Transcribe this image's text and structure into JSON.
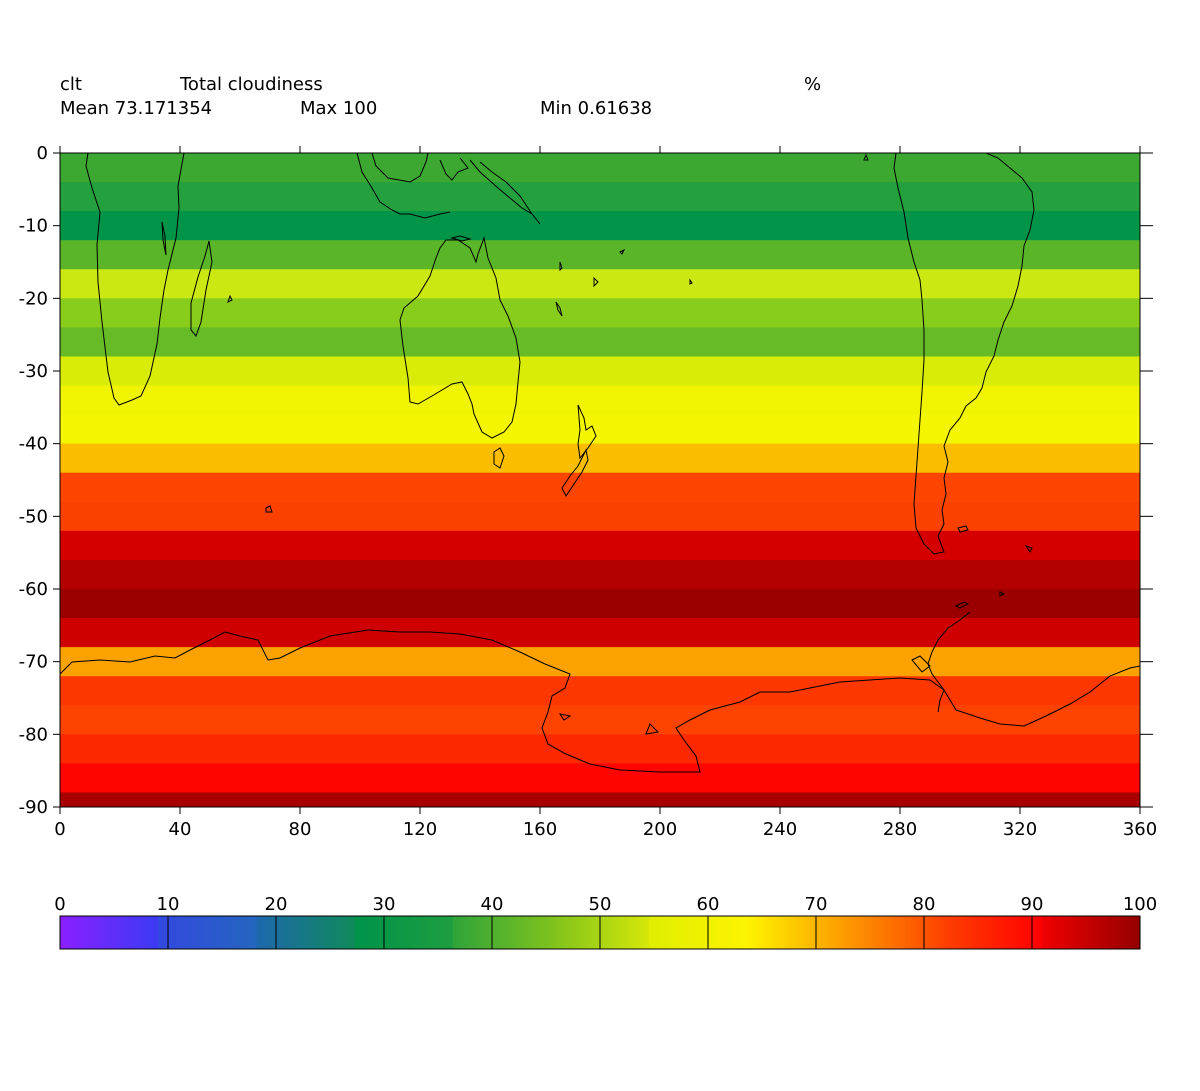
{
  "header": {
    "variable": "clt",
    "long_name": "Total cloudiness",
    "units": "%",
    "mean_label": "Mean 73.171354",
    "max_label": "Max 100",
    "min_label": "Min 0.61638"
  },
  "chart_data": {
    "type": "heatmap",
    "title": "Total cloudiness",
    "xlim": [
      0,
      360
    ],
    "ylim": [
      -90,
      0
    ],
    "x_ticks": [
      "0",
      "40",
      "80",
      "120",
      "160",
      "200",
      "240",
      "280",
      "320",
      "360"
    ],
    "y_ticks": [
      "0",
      "-10",
      "-20",
      "-30",
      "-40",
      "-50",
      "-60",
      "-70",
      "-80",
      "-90"
    ],
    "bands": [
      {
        "lat_top": 0,
        "lat_bottom": -4,
        "value": 44,
        "color": "#3ca832"
      },
      {
        "lat_top": -4,
        "lat_bottom": -8,
        "value": 39,
        "color": "#24a13e"
      },
      {
        "lat_top": -8,
        "lat_bottom": -12,
        "value": 34,
        "color": "#009448"
      },
      {
        "lat_top": -12,
        "lat_bottom": -16,
        "value": 44,
        "color": "#5ab628"
      },
      {
        "lat_top": -16,
        "lat_bottom": -20,
        "value": 58,
        "color": "#cce812"
      },
      {
        "lat_top": -20,
        "lat_bottom": -24,
        "value": 53,
        "color": "#88cc1c"
      },
      {
        "lat_top": -24,
        "lat_bottom": -28,
        "value": 48,
        "color": "#66bb26"
      },
      {
        "lat_top": -28,
        "lat_bottom": -32,
        "value": 58,
        "color": "#d8ec08"
      },
      {
        "lat_top": -32,
        "lat_bottom": -36,
        "value": 62,
        "color": "#f0f400"
      },
      {
        "lat_top": -36,
        "lat_bottom": -40,
        "value": 64,
        "color": "#f4f500"
      },
      {
        "lat_top": -40,
        "lat_bottom": -44,
        "value": 72,
        "color": "#fbbd00"
      },
      {
        "lat_top": -44,
        "lat_bottom": -48,
        "value": 82,
        "color": "#fc4600"
      },
      {
        "lat_top": -48,
        "lat_bottom": -52,
        "value": 83,
        "color": "#fb4100"
      },
      {
        "lat_top": -52,
        "lat_bottom": -56,
        "value": 92,
        "color": "#d40000"
      },
      {
        "lat_top": -56,
        "lat_bottom": -60,
        "value": 96,
        "color": "#b30000"
      },
      {
        "lat_top": -60,
        "lat_bottom": -64,
        "value": 99,
        "color": "#9b0000"
      },
      {
        "lat_top": -64,
        "lat_bottom": -68,
        "value": 92,
        "color": "#cf0000"
      },
      {
        "lat_top": -68,
        "lat_bottom": -72,
        "value": 73,
        "color": "#fca200"
      },
      {
        "lat_top": -72,
        "lat_bottom": -76,
        "value": 84,
        "color": "#fc3800"
      },
      {
        "lat_top": -76,
        "lat_bottom": -80,
        "value": 82,
        "color": "#fc4400"
      },
      {
        "lat_top": -80,
        "lat_bottom": -84,
        "value": 86,
        "color": "#fb2800"
      },
      {
        "lat_top": -84,
        "lat_bottom": -88,
        "value": 90,
        "color": "#ff0500"
      },
      {
        "lat_top": -88,
        "lat_bottom": -90,
        "value": 98,
        "color": "#a80000"
      }
    ],
    "colorbar": {
      "range": [
        0,
        100
      ],
      "ticks": [
        "0",
        "10",
        "20",
        "30",
        "40",
        "50",
        "60",
        "70",
        "80",
        "90",
        "100"
      ],
      "segments": [
        [
          "#8a1fff",
          "#3b3bf2"
        ],
        [
          "#3348e0",
          "#2466be"
        ],
        [
          "#1d68ad",
          "#0f8a5a"
        ],
        [
          "#00934a",
          "#1e9e40"
        ],
        [
          "#2fa43a",
          "#7ec21e"
        ],
        [
          "#7ec21e",
          "#d6e80a"
        ],
        [
          "#dfee00",
          "#fdf400"
        ],
        [
          "#fdf400",
          "#fd9a00"
        ],
        [
          "#fd9a00",
          "#fd4200"
        ],
        [
          "#fd4000",
          "#ff0000"
        ],
        [
          "#f00000",
          "#940000"
        ]
      ]
    }
  }
}
